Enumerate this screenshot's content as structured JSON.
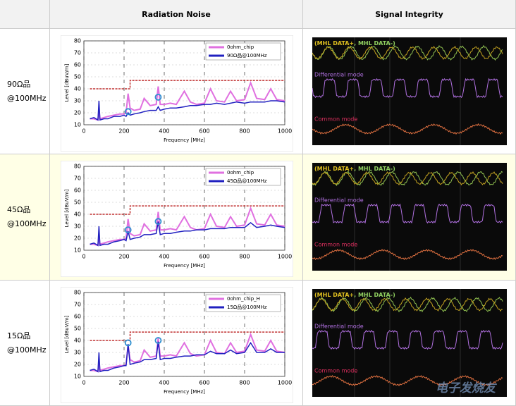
{
  "table": {
    "headers": [
      "Radiation Noise",
      "Signal Integrity"
    ],
    "rows": [
      {
        "label": [
          "90Ω品",
          "@100MHz"
        ],
        "chart": {
          "type": "line",
          "xlabel": "Frequency [MHz]",
          "ylabel": "Level [dBuV/m]",
          "xlim": [
            0,
            1000
          ],
          "ylim": [
            10,
            80
          ],
          "xticks": [
            0,
            200,
            400,
            600,
            800,
            1000
          ],
          "yticks": [
            10,
            20,
            30,
            40,
            50,
            60,
            70,
            80
          ],
          "grid": true,
          "legend": "top-right",
          "x": [
            30,
            50,
            70,
            75,
            80,
            100,
            120,
            150,
            180,
            200,
            210,
            220,
            230,
            250,
            280,
            300,
            330,
            360,
            370,
            380,
            400,
            430,
            460,
            500,
            530,
            560,
            600,
            630,
            660,
            700,
            730,
            760,
            800,
            830,
            860,
            900,
            930,
            960,
            1000
          ],
          "series": [
            {
              "name": "0ohm_chip",
              "color": "#e070e0",
              "values": [
                15,
                15,
                14,
                22,
                15,
                16,
                17,
                18,
                19,
                19,
                20,
                36,
                24,
                22,
                23,
                32,
                26,
                27,
                42,
                27,
                27,
                28,
                27,
                38,
                29,
                27,
                28,
                40,
                30,
                29,
                38,
                30,
                31,
                45,
                32,
                31,
                40,
                31,
                30
              ]
            },
            {
              "name": "90Ω品@100MHz",
              "color": "#2020c0",
              "values": [
                15,
                16,
                14,
                30,
                14,
                15,
                15,
                17,
                17,
                18,
                17,
                20,
                18,
                19,
                20,
                21,
                22,
                22,
                25,
                22,
                23,
                24,
                24,
                25,
                26,
                26,
                27,
                27,
                28,
                27,
                28,
                29,
                28,
                29,
                29,
                29,
                30,
                30,
                29
              ]
            }
          ],
          "limit": {
            "color": "#c03030",
            "x": [
              30,
              230,
              230,
              1000
            ],
            "values": [
              40,
              40,
              47,
              47
            ]
          },
          "markers": {
            "color": "#3090d0",
            "x": [
              220,
              370
            ],
            "values": [
              21,
              33
            ]
          }
        },
        "scope": {
          "pos": "(MHL DATA+",
          "neg": ", MHL DATA-)",
          "differential": "Differential mode",
          "common": "Common mode"
        }
      },
      {
        "label": [
          "45Ω品",
          "@100MHz"
        ],
        "chart": {
          "type": "line",
          "xlabel": "Frequency [MHz]",
          "ylabel": "Level [dBuV/m]",
          "xlim": [
            0,
            1000
          ],
          "ylim": [
            10,
            80
          ],
          "xticks": [
            0,
            200,
            400,
            600,
            800,
            1000
          ],
          "yticks": [
            10,
            20,
            30,
            40,
            50,
            60,
            70,
            80
          ],
          "grid": true,
          "legend": "top-right",
          "x": [
            30,
            50,
            70,
            75,
            80,
            100,
            120,
            150,
            180,
            200,
            210,
            220,
            230,
            250,
            280,
            300,
            330,
            360,
            370,
            380,
            400,
            430,
            460,
            500,
            530,
            560,
            600,
            630,
            660,
            700,
            730,
            760,
            800,
            830,
            860,
            900,
            930,
            960,
            1000
          ],
          "series": [
            {
              "name": "0ohm_chip",
              "color": "#e070e0",
              "values": [
                15,
                15,
                14,
                22,
                15,
                16,
                17,
                18,
                19,
                19,
                20,
                36,
                24,
                22,
                23,
                32,
                26,
                27,
                42,
                27,
                27,
                28,
                27,
                38,
                29,
                27,
                28,
                40,
                30,
                29,
                38,
                30,
                31,
                45,
                32,
                31,
                40,
                31,
                30
              ]
            },
            {
              "name": "45Ω品@100MHz",
              "color": "#2020c0",
              "values": [
                15,
                16,
                14,
                30,
                14,
                15,
                15,
                17,
                18,
                19,
                18,
                26,
                19,
                20,
                21,
                23,
                23,
                24,
                34,
                23,
                24,
                24,
                25,
                26,
                26,
                27,
                27,
                28,
                28,
                28,
                29,
                29,
                29,
                33,
                29,
                30,
                31,
                30,
                29
              ]
            }
          ],
          "limit": {
            "color": "#c03030",
            "x": [
              30,
              230,
              230,
              1000
            ],
            "values": [
              40,
              40,
              47,
              47
            ]
          },
          "markers": {
            "color": "#3090d0",
            "x": [
              220,
              370
            ],
            "values": [
              27,
              34
            ]
          }
        },
        "scope": {
          "pos": "(MHL DATA+",
          "neg": ", MHL DATA-)",
          "differential": "Differential mode",
          "common": "Common mode"
        }
      },
      {
        "label": [
          "15Ω品",
          "@100MHz"
        ],
        "chart": {
          "type": "line",
          "xlabel": "Frequency [MHz]",
          "ylabel": "Level [dBuV/m]",
          "xlim": [
            0,
            1000
          ],
          "ylim": [
            10,
            80
          ],
          "xticks": [
            0,
            200,
            400,
            600,
            800,
            1000
          ],
          "yticks": [
            10,
            20,
            30,
            40,
            50,
            60,
            70,
            80
          ],
          "grid": true,
          "legend": "top-right",
          "x": [
            30,
            50,
            70,
            75,
            80,
            100,
            120,
            150,
            180,
            200,
            210,
            220,
            230,
            250,
            280,
            300,
            330,
            360,
            370,
            380,
            400,
            430,
            460,
            500,
            530,
            560,
            600,
            630,
            660,
            700,
            730,
            760,
            800,
            830,
            860,
            900,
            930,
            960,
            1000
          ],
          "series": [
            {
              "name": "0ohm_chip_H",
              "color": "#e070e0",
              "values": [
                15,
                15,
                14,
                22,
                15,
                16,
                17,
                18,
                19,
                19,
                20,
                36,
                24,
                22,
                23,
                32,
                26,
                27,
                42,
                27,
                27,
                28,
                27,
                38,
                29,
                27,
                28,
                40,
                30,
                29,
                38,
                30,
                31,
                45,
                32,
                31,
                40,
                31,
                30
              ]
            },
            {
              "name": "15Ω品@100MHz",
              "color": "#2020c0",
              "values": [
                15,
                16,
                14,
                30,
                14,
                15,
                15,
                17,
                18,
                19,
                19,
                37,
                20,
                21,
                22,
                24,
                24,
                25,
                39,
                24,
                25,
                25,
                26,
                27,
                27,
                28,
                28,
                31,
                29,
                29,
                32,
                29,
                30,
                38,
                30,
                30,
                33,
                30,
                30
              ]
            }
          ],
          "limit": {
            "color": "#c03030",
            "x": [
              30,
              230,
              230,
              1000
            ],
            "values": [
              40,
              40,
              47,
              47
            ]
          },
          "markers": {
            "color": "#3090d0",
            "x": [
              220,
              370
            ],
            "values": [
              38,
              40
            ]
          }
        },
        "scope": {
          "pos": "(MHL DATA+",
          "neg": ", MHL DATA-)",
          "differential": "Differential mode",
          "common": "Common mode"
        }
      }
    ],
    "watermark": "电子发烧友"
  }
}
